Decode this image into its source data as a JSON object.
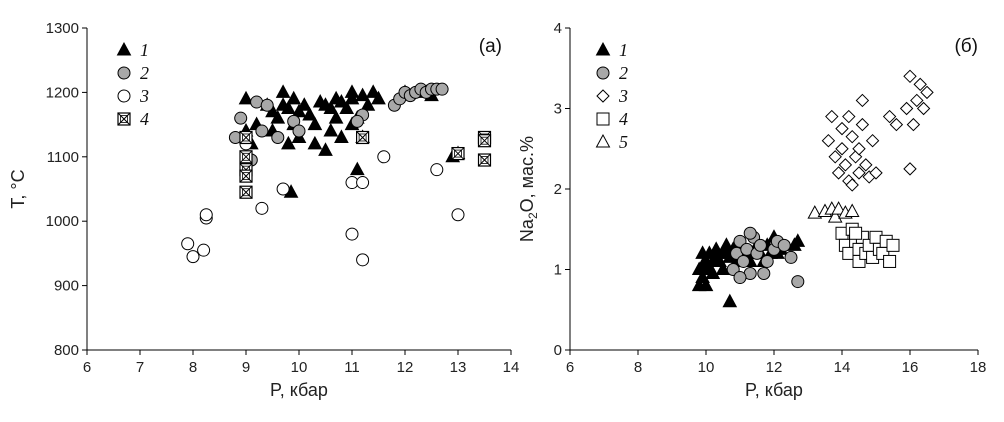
{
  "chart_data": [
    {
      "type": "scatter",
      "panel_label": "(а)",
      "xlabel": "P, кбар",
      "ylabel": "T, °C",
      "xlim": [
        6,
        14
      ],
      "ylim": [
        800,
        1300
      ],
      "xticks": [
        6,
        7,
        8,
        9,
        10,
        11,
        12,
        13,
        14
      ],
      "yticks": [
        800,
        900,
        1000,
        1100,
        1200,
        1300
      ],
      "grid": false,
      "legend_position": "top-left",
      "series": [
        {
          "name": "1",
          "marker": "triangle-black",
          "points": [
            [
              9.0,
              1190
            ],
            [
              9.0,
              1140
            ],
            [
              9.1,
              1120
            ],
            [
              9.2,
              1150
            ],
            [
              9.4,
              1180
            ],
            [
              9.5,
              1170
            ],
            [
              9.5,
              1140
            ],
            [
              9.6,
              1160
            ],
            [
              9.7,
              1180
            ],
            [
              9.7,
              1200
            ],
            [
              9.8,
              1175
            ],
            [
              9.8,
              1120
            ],
            [
              9.9,
              1190
            ],
            [
              9.9,
              1150
            ],
            [
              10.0,
              1170
            ],
            [
              10.0,
              1130
            ],
            [
              10.1,
              1180
            ],
            [
              10.2,
              1165
            ],
            [
              10.3,
              1150
            ],
            [
              10.3,
              1120
            ],
            [
              10.4,
              1185
            ],
            [
              10.5,
              1180
            ],
            [
              10.5,
              1110
            ],
            [
              10.6,
              1175
            ],
            [
              10.6,
              1140
            ],
            [
              10.7,
              1190
            ],
            [
              10.7,
              1160
            ],
            [
              10.8,
              1185
            ],
            [
              10.8,
              1130
            ],
            [
              10.9,
              1175
            ],
            [
              11.0,
              1200
            ],
            [
              11.0,
              1190
            ],
            [
              11.0,
              1150
            ],
            [
              11.1,
              1160
            ],
            [
              11.1,
              1080
            ],
            [
              11.2,
              1195
            ],
            [
              11.3,
              1180
            ],
            [
              11.4,
              1200
            ],
            [
              11.5,
              1190
            ],
            [
              11.2,
              1130
            ],
            [
              12.0,
              1200
            ],
            [
              12.4,
              1200
            ],
            [
              12.5,
              1195
            ],
            [
              12.9,
              1100
            ],
            [
              13.0,
              1105
            ],
            [
              9.85,
              1045
            ]
          ]
        },
        {
          "name": "2",
          "marker": "circle-gray",
          "points": [
            [
              8.8,
              1130
            ],
            [
              8.9,
              1160
            ],
            [
              9.1,
              1095
            ],
            [
              9.2,
              1185
            ],
            [
              9.3,
              1140
            ],
            [
              9.4,
              1180
            ],
            [
              9.6,
              1130
            ],
            [
              9.9,
              1155
            ],
            [
              10.0,
              1140
            ],
            [
              11.2,
              1165
            ],
            [
              11.1,
              1155
            ],
            [
              11.8,
              1180
            ],
            [
              11.9,
              1190
            ],
            [
              12.0,
              1200
            ],
            [
              12.1,
              1195
            ],
            [
              12.2,
              1200
            ],
            [
              12.3,
              1205
            ],
            [
              12.4,
              1200
            ],
            [
              12.5,
              1205
            ],
            [
              12.6,
              1205
            ],
            [
              12.7,
              1205
            ]
          ]
        },
        {
          "name": "3",
          "marker": "circle-open",
          "points": [
            [
              7.9,
              965
            ],
            [
              8.0,
              945
            ],
            [
              8.2,
              955
            ],
            [
              8.25,
              1005
            ],
            [
              8.25,
              1010
            ],
            [
              9.0,
              1120
            ],
            [
              9.3,
              1020
            ],
            [
              9.7,
              1050
            ],
            [
              11.0,
              980
            ],
            [
              11.0,
              1060
            ],
            [
              11.2,
              940
            ],
            [
              11.2,
              1060
            ],
            [
              11.6,
              1100
            ],
            [
              12.6,
              1080
            ],
            [
              13.0,
              1010
            ]
          ]
        },
        {
          "name": "4",
          "marker": "square-x",
          "points": [
            [
              9.0,
              1130
            ],
            [
              9.0,
              1100
            ],
            [
              9.0,
              1080
            ],
            [
              9.0,
              1070
            ],
            [
              9.0,
              1045
            ],
            [
              11.2,
              1130
            ],
            [
              13.0,
              1105
            ],
            [
              13.5,
              1130
            ],
            [
              13.5,
              1125
            ],
            [
              13.5,
              1095
            ]
          ]
        }
      ]
    },
    {
      "type": "scatter",
      "panel_label": "(б)",
      "xlabel": "P, кбар",
      "ylabel_main": "Na",
      "ylabel_sub": "2",
      "ylabel_rest": "O, мас.%",
      "xlim": [
        6,
        18
      ],
      "ylim": [
        0,
        4
      ],
      "xticks": [
        6,
        8,
        10,
        12,
        14,
        16,
        18
      ],
      "yticks": [
        0,
        1,
        2,
        3,
        4
      ],
      "grid": false,
      "legend_position": "top-left",
      "series": [
        {
          "name": "1",
          "marker": "triangle-black",
          "points": [
            [
              9.8,
              0.8
            ],
            [
              9.8,
              1.0
            ],
            [
              9.9,
              1.2
            ],
            [
              9.9,
              0.9
            ],
            [
              10.0,
              1.1
            ],
            [
              10.0,
              0.8
            ],
            [
              10.1,
              1.0
            ],
            [
              10.1,
              1.2
            ],
            [
              10.2,
              1.1
            ],
            [
              10.3,
              1.15
            ],
            [
              10.3,
              1.25
            ],
            [
              10.4,
              1.1
            ],
            [
              10.5,
              1.2
            ],
            [
              10.5,
              1.0
            ],
            [
              10.6,
              1.2
            ],
            [
              10.6,
              1.3
            ],
            [
              10.7,
              0.6
            ],
            [
              10.7,
              1.15
            ],
            [
              10.8,
              1.25
            ],
            [
              10.9,
              1.1
            ],
            [
              11.0,
              1.2
            ],
            [
              11.0,
              1.3
            ],
            [
              11.2,
              1.2
            ],
            [
              11.3,
              1.1
            ],
            [
              11.5,
              1.3
            ],
            [
              11.6,
              1.2
            ],
            [
              11.7,
              1.1
            ],
            [
              11.8,
              1.3
            ],
            [
              11.9,
              1.2
            ],
            [
              12.0,
              1.4
            ],
            [
              12.1,
              1.2
            ],
            [
              12.2,
              1.25
            ],
            [
              12.6,
              1.3
            ],
            [
              12.7,
              1.35
            ],
            [
              9.9,
              1.05
            ],
            [
              10.2,
              0.95
            ]
          ]
        },
        {
          "name": "2",
          "marker": "circle-gray",
          "points": [
            [
              10.8,
              1.0
            ],
            [
              10.9,
              1.2
            ],
            [
              11.0,
              1.35
            ],
            [
              11.1,
              1.1
            ],
            [
              11.2,
              1.25
            ],
            [
              11.3,
              0.95
            ],
            [
              11.4,
              1.4
            ],
            [
              11.5,
              1.2
            ],
            [
              11.6,
              1.3
            ],
            [
              11.7,
              0.95
            ],
            [
              11.8,
              1.1
            ],
            [
              12.0,
              1.25
            ],
            [
              12.1,
              1.35
            ],
            [
              12.3,
              1.3
            ],
            [
              12.5,
              1.15
            ],
            [
              12.7,
              0.85
            ],
            [
              11.0,
              0.9
            ],
            [
              11.3,
              1.45
            ]
          ]
        },
        {
          "name": "3",
          "marker": "diamond-open",
          "points": [
            [
              13.6,
              2.6
            ],
            [
              13.8,
              2.4
            ],
            [
              13.9,
              2.2
            ],
            [
              14.0,
              2.75
            ],
            [
              14.0,
              2.5
            ],
            [
              14.1,
              2.3
            ],
            [
              14.2,
              2.9
            ],
            [
              14.2,
              2.1
            ],
            [
              14.3,
              2.65
            ],
            [
              14.4,
              2.4
            ],
            [
              14.5,
              2.2
            ],
            [
              14.5,
              2.5
            ],
            [
              14.6,
              3.1
            ],
            [
              14.6,
              2.8
            ],
            [
              14.7,
              2.3
            ],
            [
              14.8,
              2.15
            ],
            [
              14.9,
              2.6
            ],
            [
              15.0,
              2.2
            ],
            [
              15.4,
              2.9
            ],
            [
              15.6,
              2.8
            ],
            [
              15.9,
              3.0
            ],
            [
              16.0,
              2.25
            ],
            [
              16.0,
              3.4
            ],
            [
              16.1,
              2.8
            ],
            [
              16.2,
              3.1
            ],
            [
              16.3,
              3.3
            ],
            [
              16.4,
              3.0
            ],
            [
              16.5,
              3.2
            ],
            [
              13.7,
              2.9
            ],
            [
              14.3,
              2.05
            ]
          ]
        },
        {
          "name": "4",
          "marker": "square-open",
          "points": [
            [
              14.0,
              1.45
            ],
            [
              14.1,
              1.3
            ],
            [
              14.2,
              1.2
            ],
            [
              14.3,
              1.5
            ],
            [
              14.4,
              1.35
            ],
            [
              14.5,
              1.25
            ],
            [
              14.5,
              1.1
            ],
            [
              14.6,
              1.4
            ],
            [
              14.7,
              1.2
            ],
            [
              14.8,
              1.3
            ],
            [
              14.9,
              1.15
            ],
            [
              15.0,
              1.4
            ],
            [
              15.1,
              1.25
            ],
            [
              15.2,
              1.2
            ],
            [
              15.3,
              1.35
            ],
            [
              15.4,
              1.1
            ],
            [
              15.5,
              1.3
            ],
            [
              14.4,
              1.45
            ]
          ]
        },
        {
          "name": "5",
          "marker": "triangle-open",
          "points": [
            [
              13.2,
              1.7
            ],
            [
              13.5,
              1.72
            ],
            [
              13.7,
              1.75
            ],
            [
              13.8,
              1.65
            ],
            [
              13.9,
              1.75
            ],
            [
              14.1,
              1.7
            ],
            [
              14.3,
              1.72
            ]
          ]
        }
      ]
    }
  ]
}
